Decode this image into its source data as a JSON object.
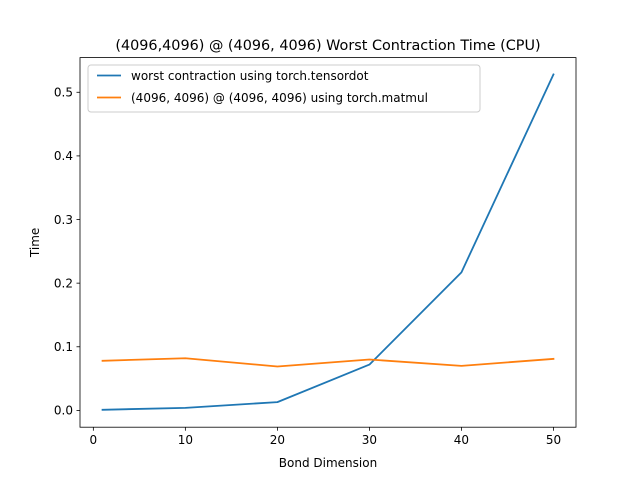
{
  "chart_data": {
    "type": "line",
    "title": "(4096,4096) @ (4096, 4096) Worst Contraction Time (CPU)",
    "xlabel": "Bond Dimension",
    "ylabel": "Time",
    "x": [
      1,
      10,
      20,
      30,
      40,
      50
    ],
    "xlim": [
      -1.45,
      52.45
    ],
    "ylim": [
      -0.0264,
      0.5545
    ],
    "xticks": [
      0,
      10,
      20,
      30,
      40,
      50
    ],
    "yticks": [
      0.0,
      0.1,
      0.2,
      0.3,
      0.4,
      0.5
    ],
    "grid": false,
    "legend_position": "top-left",
    "series": [
      {
        "name": "worst contraction using torch.tensordot",
        "color": "#1f77b4",
        "values": [
          0.001,
          0.004,
          0.013,
          0.072,
          0.217,
          0.528
        ]
      },
      {
        "name": "(4096, 4096) @ (4096, 4096) using torch.matmul",
        "color": "#ff7f0e",
        "values": [
          0.078,
          0.082,
          0.069,
          0.08,
          0.07,
          0.081
        ]
      }
    ]
  }
}
